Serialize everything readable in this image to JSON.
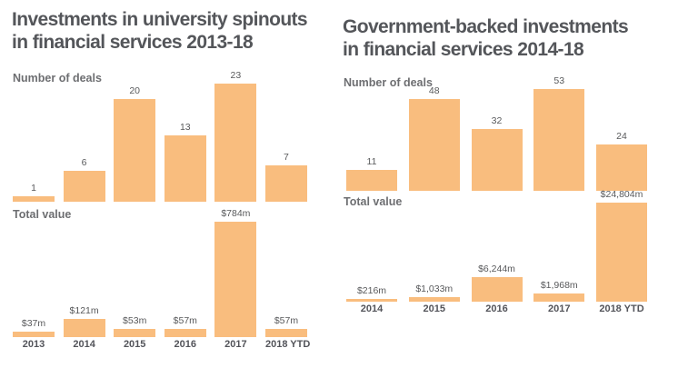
{
  "colors": {
    "bar": "#F9BD7E",
    "title": "#54565A",
    "section_label": "#6D6E71",
    "value_text": "#58595B",
    "axis_text": "#53545A"
  },
  "panels": [
    {
      "title_line1": "Investments in university spinouts",
      "title_line2": "in financial services 2013-18"
    },
    {
      "title_line1": "Government-backed investments",
      "title_line2": "in financial services 2014-18"
    }
  ],
  "chart_data": [
    {
      "type": "bar",
      "id": "university-spinouts-deals",
      "title": "Investments in university spinouts in financial services 2013-18",
      "series_label": "Number of deals",
      "categories": [
        "2013",
        "2014",
        "2015",
        "2016",
        "2017",
        "2018 YTD"
      ],
      "values": [
        1,
        6,
        20,
        13,
        23,
        7
      ],
      "ylim": [
        0,
        23
      ],
      "grid": false,
      "data_labels": true,
      "legend": "none"
    },
    {
      "type": "bar",
      "id": "university-spinouts-value",
      "title": "Investments in university spinouts in financial services 2013-18",
      "series_label": "Total value",
      "unit": "$m",
      "categories": [
        "2013",
        "2014",
        "2015",
        "2016",
        "2017",
        "2018 YTD"
      ],
      "values": [
        37,
        121,
        53,
        57,
        784,
        57
      ],
      "value_labels": [
        "$37m",
        "$121m",
        "$53m",
        "$57m",
        "$784m",
        "$57m"
      ],
      "ylim": [
        0,
        784
      ],
      "grid": false,
      "data_labels": true,
      "legend": "none"
    },
    {
      "type": "bar",
      "id": "government-backed-deals",
      "title": "Government-backed investments in financial services 2014-18",
      "series_label": "Number of deals",
      "categories": [
        "2014",
        "2015",
        "2016",
        "2017",
        "2018 YTD"
      ],
      "values": [
        11,
        48,
        32,
        53,
        24
      ],
      "ylim": [
        0,
        53
      ],
      "grid": false,
      "data_labels": true,
      "legend": "none"
    },
    {
      "type": "bar",
      "id": "government-backed-value",
      "title": "Government-backed investments in financial services 2014-18",
      "series_label": "Total value",
      "unit": "$m",
      "categories": [
        "2014",
        "2015",
        "2016",
        "2017",
        "2018 YTD"
      ],
      "values": [
        216,
        1033,
        6244,
        1968,
        24804
      ],
      "value_labels": [
        "$216m",
        "$1,033m",
        "$6,244m",
        "$1,968m",
        "$24,804m"
      ],
      "ylim": [
        0,
        24804
      ],
      "grid": false,
      "data_labels": true,
      "legend": "none"
    }
  ]
}
